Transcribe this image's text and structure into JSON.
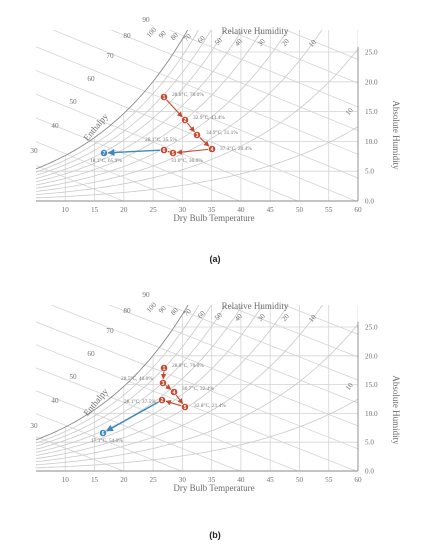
{
  "charts": [
    {
      "caption": "(a)",
      "x_axis": {
        "label": "Dry Bulb Temperature",
        "ticks": [
          "10",
          "15",
          "20",
          "25",
          "30",
          "35",
          "40",
          "45",
          "50",
          "55",
          "60"
        ]
      },
      "y_axis": {
        "label": "Absolute Humidity",
        "ticks": [
          "0.0",
          "5.0",
          "10.0",
          "15.0",
          "20.0",
          "25.0"
        ]
      },
      "rh_label": "Relative Humidity",
      "rh_ticks": [
        "100",
        "90",
        "80",
        "70",
        "60",
        "50",
        "40",
        "30",
        "20",
        "10"
      ],
      "enthalpy_label": "Enthalpy",
      "enthalpy_ticks": [
        "30",
        "40",
        "50",
        "60",
        "70",
        "80",
        "90"
      ],
      "points": [
        {
          "id": "1",
          "label": "28.8°C, 70.0%"
        },
        {
          "id": "2",
          "label": "32.9°C, 43.4%"
        },
        {
          "id": "3",
          "label": "34.9°C, 31.1%"
        },
        {
          "id": "4",
          "label": "37.3°C, 20.4%"
        },
        {
          "id": "5",
          "label": "31.0°C, 30.0%"
        },
        {
          "id": "6",
          "label": "28.1°C, 35.5%"
        },
        {
          "id": "7",
          "label": "18.1°C, 65.9%"
        }
      ]
    },
    {
      "caption": "(b)",
      "x_axis": {
        "label": "Dry Bulb Temperature",
        "ticks": [
          "10",
          "15",
          "20",
          "25",
          "30",
          "35",
          "40",
          "45",
          "50",
          "55",
          "60"
        ]
      },
      "y_axis": {
        "label": "Absolute Humidity",
        "ticks": [
          "0.0",
          "5.0",
          "10.0",
          "15.0",
          "20.0",
          "25.0"
        ]
      },
      "rh_label": "Relative Humidity",
      "rh_ticks": [
        "100",
        "90",
        "80",
        "70",
        "60",
        "50",
        "40",
        "30",
        "20",
        "10"
      ],
      "enthalpy_label": "Enthalpy",
      "enthalpy_ticks": [
        "30",
        "40",
        "50",
        "60",
        "70",
        "80",
        "90"
      ],
      "points": [
        {
          "id": "1",
          "label": "28.8°C, 70.0%"
        },
        {
          "id": "2",
          "label": "28.1°C, 37.5%"
        },
        {
          "id": "3",
          "label": "28.5°C, 46.0%"
        },
        {
          "id": "4",
          "label": "30.7°C, 32.4%"
        },
        {
          "id": "5",
          "label": "32.8°C, 21.4%"
        },
        {
          "id": "6",
          "label": "17.1°C, 54.6%"
        }
      ]
    }
  ],
  "colors": {
    "heat_point": "#c8482f",
    "cool_point": "#3f88bd",
    "grid": "#d4d4d4"
  }
}
